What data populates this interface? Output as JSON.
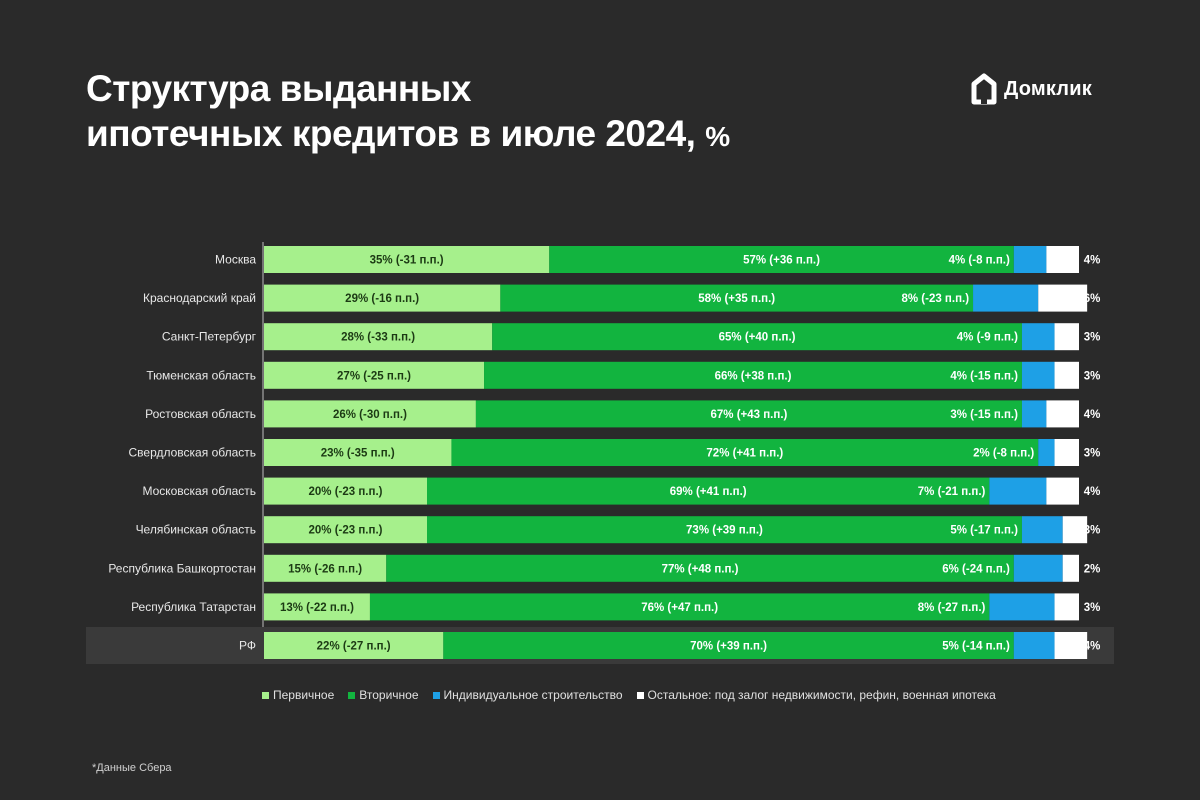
{
  "header": {
    "title_line1": "Структура выданных",
    "title_line2": "ипотечных кредитов в июле 2024,",
    "title_unit": "%",
    "logo_text": "Домклик"
  },
  "footnote": "*Данные Сбера",
  "colors": {
    "primary": "#a6f08c",
    "secondary": "#12b43f",
    "individual": "#1ea0e6",
    "other": "#ffffff",
    "background": "#2a2a2a",
    "highlight_row": "#3a3a3a"
  },
  "chart_data": {
    "type": "bar",
    "orientation": "horizontal",
    "stacked": true,
    "title": "Структура выданных ипотечных кредитов в июле 2024, %",
    "xlim": [
      0,
      100
    ],
    "categories": [
      "Москва",
      "Краснодарский край",
      "Санкт-Петербург",
      "Тюменская область",
      "Ростовская область",
      "Свердловская область",
      "Московская область",
      "Челябинская область",
      "Республика Башкортостан",
      "Республика Татарстан",
      "РФ"
    ],
    "highlight_category": "РФ",
    "series": [
      {
        "name": "Первичное",
        "color": "#a6f08c",
        "values": [
          35,
          29,
          28,
          27,
          26,
          23,
          20,
          20,
          15,
          13,
          22
        ],
        "labels": [
          "35% (-31 п.п.)",
          "29% (-16 п.п.)",
          "28% (-33 п.п.)",
          "27% (-25 п.п.)",
          "26% (-30 п.п.)",
          "23% (-35 п.п.)",
          "20% (-23 п.п.)",
          "20% (-23 п.п.)",
          "15% (-26 п.п.)",
          "13% (-22 п.п.)",
          "22% (-27 п.п.)"
        ]
      },
      {
        "name": "Вторичное",
        "color": "#12b43f",
        "values": [
          57,
          58,
          65,
          66,
          67,
          72,
          69,
          73,
          77,
          76,
          70
        ],
        "labels": [
          "57% (+36 п.п.)",
          "58% (+35 п.п.)",
          "65% (+40 п.п.)",
          "66% (+38 п.п.)",
          "67% (+43 п.п.)",
          "72% (+41 п.п.)",
          "69% (+41 п.п.)",
          "73% (+39 п.п.)",
          "77% (+48 п.п.)",
          "76% (+47 п.п.)",
          "70% (+39 п.п.)"
        ]
      },
      {
        "name": "Индивидуальное строительство",
        "color": "#1ea0e6",
        "values": [
          4,
          8,
          4,
          4,
          3,
          2,
          7,
          5,
          6,
          8,
          5
        ],
        "labels": [
          "4% (-8 п.п.)",
          "8% (-23 п.п.)",
          "4% (-9 п.п.)",
          "4% (-15 п.п.)",
          "3% (-15 п.п.)",
          "2% (-8 п.п.)",
          "7% (-21 п.п.)",
          "5% (-17 п.п.)",
          "6% (-24 п.п.)",
          "8% (-27 п.п.)",
          "5% (-14 п.п.)"
        ]
      },
      {
        "name": "Остальное: под залог недвижимости, рефин, военная ипотека",
        "color": "#ffffff",
        "values": [
          4,
          6,
          3,
          3,
          4,
          3,
          4,
          3,
          2,
          3,
          4
        ],
        "labels": [
          "4%",
          "6%",
          "3%",
          "3%",
          "4%",
          "3%",
          "4%",
          "3%",
          "2%",
          "3%",
          "4%"
        ]
      }
    ],
    "legend_position": "bottom",
    "grid": false
  }
}
